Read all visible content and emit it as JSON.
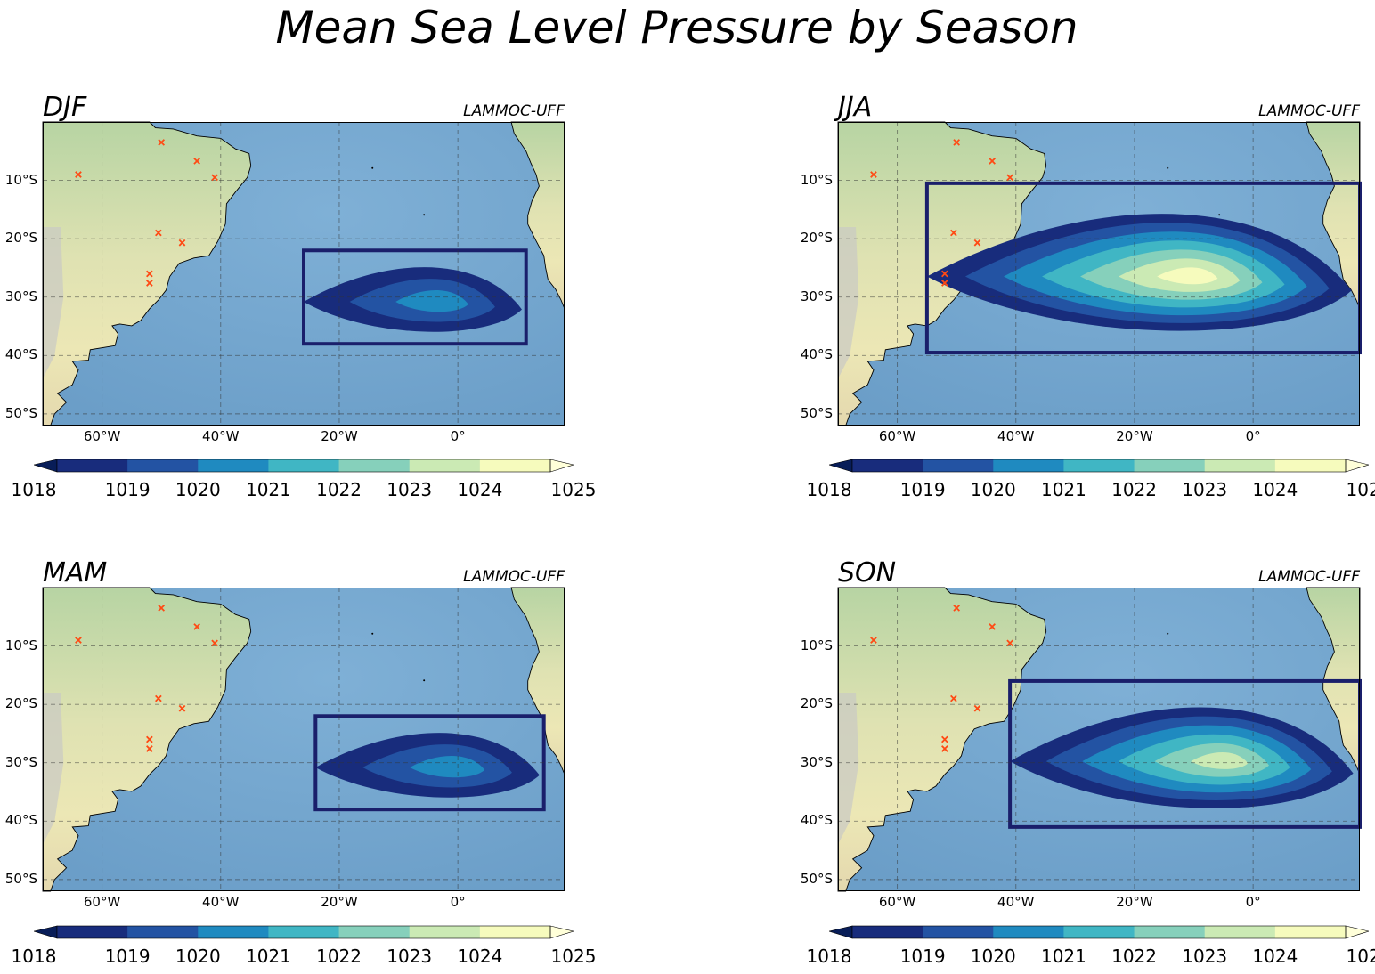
{
  "title": "Mean Sea Level Pressure by Season",
  "credit": "LAMMOC-UFF",
  "lat_ticks": [
    "10°S",
    "20°S",
    "30°S",
    "40°S",
    "50°S"
  ],
  "lon_ticks": [
    "60°W",
    "40°W",
    "20°W",
    "0°"
  ],
  "colorbar": {
    "ticks": [
      "1018",
      "1019",
      "1020",
      "1021",
      "1022",
      "1023",
      "1024",
      "1025"
    ],
    "colors": [
      "#182c7c",
      "#2353a3",
      "#1f8ac0",
      "#40b6c4",
      "#86d0bb",
      "#cbeab4",
      "#f6fbbd"
    ],
    "under_color": "#081d58",
    "over_color": "#ffffd9"
  },
  "marker_color": "#ff4a14",
  "chart_data": [
    {
      "type": "map-contourf",
      "season": "DJF",
      "extent": {
        "lon": [
          -70,
          18
        ],
        "lat": [
          -52,
          0
        ]
      },
      "box": {
        "lon": [
          -26,
          11.5
        ],
        "lat": [
          -38,
          -22
        ]
      },
      "levels_reached": [
        "1018",
        "1019",
        "1020"
      ]
    },
    {
      "type": "map-contourf",
      "season": "JJA",
      "extent": {
        "lon": [
          -70,
          18
        ],
        "lat": [
          -52,
          0
        ]
      },
      "box": {
        "lon": [
          -55,
          18
        ],
        "lat": [
          -39.5,
          -10.5
        ]
      },
      "levels_reached": [
        "1018",
        "1019",
        "1020",
        "1021",
        "1022",
        "1023",
        "1024"
      ]
    },
    {
      "type": "map-contourf",
      "season": "MAM",
      "extent": {
        "lon": [
          -70,
          18
        ],
        "lat": [
          -52,
          0
        ]
      },
      "box": {
        "lon": [
          -24,
          14.5
        ],
        "lat": [
          -38,
          -22
        ]
      },
      "levels_reached": [
        "1018",
        "1019",
        "1020"
      ]
    },
    {
      "type": "map-contourf",
      "season": "SON",
      "extent": {
        "lon": [
          -70,
          18
        ],
        "lat": [
          -52,
          0
        ]
      },
      "box": {
        "lon": [
          -41,
          18
        ],
        "lat": [
          -41,
          -16
        ]
      },
      "levels_reached": [
        "1018",
        "1019",
        "1020",
        "1021",
        "1022",
        "1023"
      ]
    }
  ],
  "station_markers": [
    {
      "lon": -64,
      "lat": -9
    },
    {
      "lon": -50,
      "lat": -3.5
    },
    {
      "lon": -44,
      "lat": -6.7
    },
    {
      "lon": -41,
      "lat": -9.5
    },
    {
      "lon": -50.5,
      "lat": -19
    },
    {
      "lon": -46.5,
      "lat": -20.7
    },
    {
      "lon": -52,
      "lat": -26
    },
    {
      "lon": -52,
      "lat": -27.6
    }
  ]
}
